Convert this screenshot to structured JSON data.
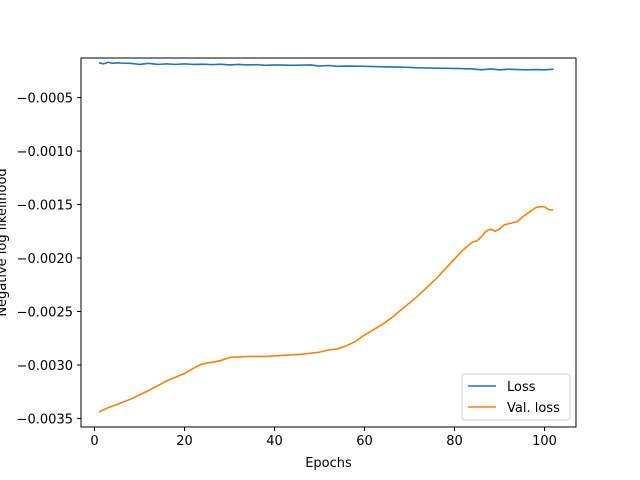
{
  "chart_data": {
    "type": "line",
    "title": "",
    "xlabel": "Epochs",
    "ylabel": "Negative log likelihood",
    "xlim": [
      -3,
      107
    ],
    "ylim": [
      -0.00358,
      -0.00013
    ],
    "xticks": [
      0,
      20,
      40,
      60,
      80,
      100
    ],
    "xtick_labels": [
      "0",
      "20",
      "40",
      "60",
      "80",
      "100"
    ],
    "yticks": [
      -0.0005,
      -0.001,
      -0.0015,
      -0.002,
      -0.0025,
      -0.003,
      -0.0035
    ],
    "ytick_labels": [
      "−0.0005",
      "−0.0010",
      "−0.0015",
      "−0.0020",
      "−0.0025",
      "−0.0030",
      "−0.0035"
    ],
    "grid": false,
    "legend_position": "lower-right",
    "series": [
      {
        "name": "Loss",
        "color": "#1f77b4",
        "x": [
          1,
          2,
          3,
          4,
          5,
          6,
          8,
          10,
          12,
          14,
          16,
          18,
          20,
          22,
          24,
          26,
          28,
          30,
          32,
          34,
          36,
          38,
          40,
          44,
          48,
          50,
          52,
          54,
          56,
          60,
          64,
          68,
          72,
          76,
          80,
          84,
          86,
          88,
          90,
          92,
          94,
          96,
          98,
          100,
          102
        ],
        "y": [
          -0.000175,
          -0.000185,
          -0.00017,
          -0.00018,
          -0.000175,
          -0.000178,
          -0.00018,
          -0.00019,
          -0.00018,
          -0.00019,
          -0.000185,
          -0.00019,
          -0.000185,
          -0.00019,
          -0.000188,
          -0.000192,
          -0.000188,
          -0.000195,
          -0.00019,
          -0.000195,
          -0.000192,
          -0.000198,
          -0.000195,
          -0.000198,
          -0.000195,
          -0.000205,
          -0.0002,
          -0.000208,
          -0.000205,
          -0.000208,
          -0.000212,
          -0.000215,
          -0.000222,
          -0.000225,
          -0.000228,
          -0.000232,
          -0.00024,
          -0.000232,
          -0.00024,
          -0.000235,
          -0.000238,
          -0.00024,
          -0.000238,
          -0.00024,
          -0.000235
        ]
      },
      {
        "name": "Val. loss",
        "color": "#ff7f0e",
        "x": [
          1,
          3,
          5,
          8,
          12,
          16,
          20,
          22,
          24,
          28,
          30,
          34,
          38,
          42,
          46,
          50,
          52,
          54,
          56,
          58,
          60,
          62,
          64,
          66,
          68,
          70,
          72,
          74,
          76,
          78,
          80,
          82,
          84,
          85,
          86,
          87,
          88,
          89,
          90,
          91,
          92,
          94,
          95,
          96,
          97,
          98,
          99,
          100,
          101,
          102
        ],
        "y": [
          -0.00344,
          -0.0034,
          -0.00337,
          -0.00332,
          -0.00324,
          -0.00315,
          -0.00308,
          -0.00303,
          -0.00299,
          -0.00296,
          -0.00293,
          -0.00292,
          -0.00292,
          -0.00291,
          -0.0029,
          -0.00288,
          -0.00286,
          -0.00285,
          -0.00282,
          -0.00278,
          -0.00272,
          -0.00267,
          -0.00262,
          -0.00256,
          -0.00249,
          -0.00242,
          -0.00235,
          -0.00227,
          -0.00219,
          -0.0021,
          -0.00201,
          -0.00192,
          -0.00185,
          -0.00184,
          -0.0018,
          -0.00175,
          -0.00173,
          -0.00175,
          -0.00173,
          -0.00169,
          -0.00168,
          -0.00166,
          -0.00162,
          -0.00159,
          -0.00156,
          -0.00153,
          -0.00152,
          -0.00152,
          -0.00155,
          -0.00155
        ]
      }
    ]
  }
}
